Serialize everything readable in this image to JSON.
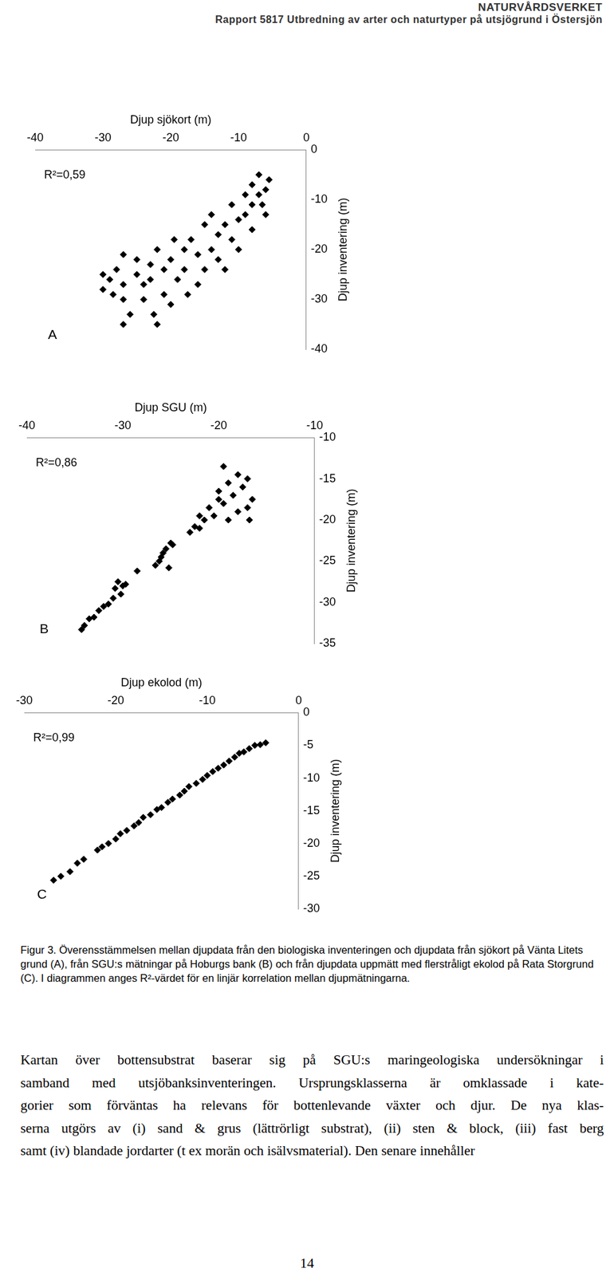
{
  "header": {
    "publisher": "NATURVÅRDSVERKET",
    "report": "Rapport 5817 Utbredning av arter och naturtyper på utsjögrund i Östersjön"
  },
  "chart_data": [
    {
      "type": "scatter",
      "x_label": "Djup sjökort (m)",
      "y_label": "Djup inventering (m)",
      "annotation": "R²=0,59",
      "panel_label": "A",
      "xlim": [
        -40,
        0
      ],
      "xticks": [
        -40,
        -30,
        -20,
        -10,
        0
      ],
      "ylim": [
        -40,
        0
      ],
      "yticks": [
        0,
        -10,
        -20,
        -30,
        -40
      ],
      "grid": false,
      "color": "#000000",
      "marker": "diamond",
      "x": [
        -30,
        -30,
        -29,
        -28.5,
        -28,
        -27,
        -27,
        -27,
        -27,
        -26,
        -25,
        -25,
        -24,
        -24,
        -23,
        -23,
        -22.5,
        -22,
        -22,
        -21,
        -21,
        -20,
        -20,
        -19.5,
        -19,
        -18,
        -18,
        -17.5,
        -17,
        -16,
        -16,
        -15,
        -15,
        -14,
        -14,
        -13,
        -13,
        -12,
        -12,
        -11,
        -11,
        -10,
        -10,
        -9,
        -9,
        -8,
        -8,
        -8,
        -7,
        -7,
        -6,
        -6,
        -5.5,
        -6.5
      ],
      "values": [
        -25,
        -28,
        -26,
        -29,
        -24,
        -27,
        -30,
        -35,
        -21,
        -33,
        -22,
        -25,
        -27,
        -30,
        -23,
        -26,
        -33,
        -35,
        -20,
        -24,
        -29,
        -22,
        -31,
        -18,
        -26,
        -20,
        -24,
        -29,
        -18,
        -21,
        -27,
        -15,
        -24,
        -20,
        -13,
        -17,
        -22,
        -15,
        -24,
        -18,
        -11,
        -14,
        -20,
        -9,
        -13,
        -7,
        -11,
        -16,
        -5,
        -9,
        -8,
        -13,
        -6,
        -11
      ]
    },
    {
      "type": "scatter",
      "x_label": "Djup SGU (m)",
      "y_label": "Djup inventering (m)",
      "annotation": "R²=0,86",
      "panel_label": "B",
      "xlim": [
        -40,
        -10
      ],
      "xticks": [
        -40,
        -30,
        -20,
        -10
      ],
      "ylim": [
        -35,
        -10
      ],
      "yticks": [
        -10,
        -15,
        -20,
        -25,
        -30,
        -35
      ],
      "grid": false,
      "color": "#000000",
      "marker": "diamond",
      "x": [
        -34.3,
        -34,
        -33.5,
        -33,
        -32.5,
        -32,
        -31.5,
        -31,
        -30.8,
        -30.2,
        -30,
        -29.7,
        -30.5,
        -28.5,
        -26.6,
        -26.2,
        -26,
        -25.5,
        -25,
        -25.8,
        -25.2,
        -24.8,
        -23,
        -22.5,
        -22,
        -22,
        -21.5,
        -21,
        -20.5,
        -20,
        -20,
        -19.5,
        -19,
        -19,
        -18.5,
        -18,
        -18,
        -17.5,
        -17,
        -17,
        -16.8,
        -16.5,
        -19.5
      ],
      "values": [
        -33.3,
        -32.8,
        -32,
        -31.8,
        -31,
        -30.5,
        -30.2,
        -29.5,
        -28.3,
        -29,
        -28,
        -27.8,
        -27.5,
        -26.2,
        -25.5,
        -25,
        -24.5,
        -23.5,
        -22.8,
        -24,
        -25.8,
        -23,
        -21.5,
        -20.8,
        -21,
        -19.5,
        -20,
        -18.5,
        -19.5,
        -17.5,
        -16.5,
        -18,
        -15.5,
        -20,
        -17,
        -14.5,
        -19,
        -16,
        -18.5,
        -15,
        -20,
        -17.5,
        -13.5
      ]
    },
    {
      "type": "scatter",
      "x_label": "Djup ekolod (m)",
      "y_label": "Djup inventering (m)",
      "annotation": "R²=0,99",
      "panel_label": "C",
      "xlim": [
        -30,
        0
      ],
      "xticks": [
        -30,
        -20,
        -10,
        0
      ],
      "ylim": [
        -30,
        0
      ],
      "yticks": [
        0,
        -5,
        -10,
        -15,
        -20,
        -25,
        -30
      ],
      "grid": false,
      "color": "#000000",
      "marker": "diamond",
      "x": [
        -26.8,
        -26,
        -25,
        -24.2,
        -23.5,
        -22,
        -21.5,
        -20.8,
        -20,
        -19.5,
        -18.8,
        -18,
        -17.5,
        -17,
        -16.2,
        -15.5,
        -15,
        -14.3,
        -13.8,
        -13,
        -12.5,
        -12,
        -11.2,
        -10.5,
        -10,
        -9.4,
        -8.8,
        -8.2,
        -7.6,
        -7,
        -6.5,
        -6,
        -5.4,
        -4.8,
        -4.2,
        -3.6
      ],
      "values": [
        -25.6,
        -25,
        -24.3,
        -23,
        -22.4,
        -21,
        -20.5,
        -20,
        -19.3,
        -18.5,
        -18,
        -17.3,
        -16.8,
        -16,
        -15.6,
        -14.8,
        -14.5,
        -13.7,
        -13.2,
        -12.6,
        -12,
        -11.3,
        -10.8,
        -10.2,
        -9.6,
        -9,
        -8.5,
        -8,
        -7.4,
        -6.8,
        -6.2,
        -6,
        -5.5,
        -5,
        -4.9,
        -4.6
      ]
    }
  ],
  "caption": "Figur 3. Överensstämmelsen mellan djupdata från den biologiska inventeringen och djupdata från sjökort på Vänta Litets grund (A), från SGU:s mätningar på Hoburgs bank (B) och från djupdata uppmätt med flerstråligt ekolod på Rata Storgrund (C). I diagrammen anges R²-värdet för en linjär korrelation mellan djupmätningarna.",
  "body": {
    "lines": [
      "Kartan över bottensubstrat baserar sig på SGU:s maringeologiska undersökningar i",
      "samband med utsjöbanksinventeringen. Ursprungsklasserna är omklassade i kate-",
      "gorier som förväntas ha relevans för bottenlevande växter och djur. De nya klas-",
      "serna utgörs av (i) sand & grus (lättrörligt substrat), (ii) sten & block, (iii) fast berg",
      "samt (iv) blandade jordarter (t ex morän och isälvsmaterial). Den senare innehåller"
    ]
  },
  "page_number": "14"
}
